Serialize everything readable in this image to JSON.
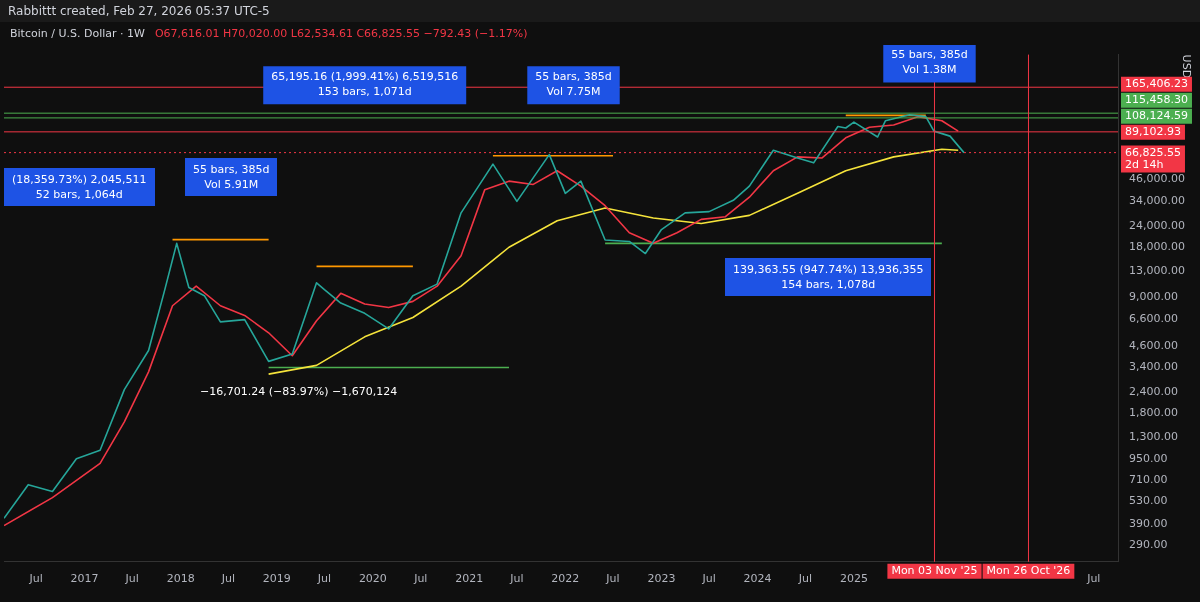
{
  "chart_data": {
    "type": "line",
    "title": "Bitcoin / U.S. Dollar · 1W",
    "subtitle": "O67,616.01 H70,020.00 L62,534.61 C66,825.55 −792.43 (−1.17%)",
    "ylabel": "USD",
    "log": true,
    "grid": false,
    "legend": false,
    "marker": "none",
    "line_style": "solid",
    "xlim": [
      "2016-03-01",
      "2027-10-01"
    ],
    "xticks": [
      {
        "value": "2016-07-01",
        "label": "Jul"
      },
      {
        "value": "2017-01-01",
        "label": "2017"
      },
      {
        "value": "2017-07-01",
        "label": "Jul"
      },
      {
        "value": "2018-01-01",
        "label": "2018"
      },
      {
        "value": "2018-07-01",
        "label": "Jul"
      },
      {
        "value": "2019-01-01",
        "label": "2019"
      },
      {
        "value": "2019-07-01",
        "label": "Jul"
      },
      {
        "value": "2020-01-01",
        "label": "2020"
      },
      {
        "value": "2020-07-01",
        "label": "Jul"
      },
      {
        "value": "2021-01-01",
        "label": "2021"
      },
      {
        "value": "2021-07-01",
        "label": "Jul"
      },
      {
        "value": "2022-01-01",
        "label": "2022"
      },
      {
        "value": "2022-07-01",
        "label": "Jul"
      },
      {
        "value": "2023-01-01",
        "label": "2023"
      },
      {
        "value": "2023-07-01",
        "label": "Jul"
      },
      {
        "value": "2024-01-01",
        "label": "2024"
      },
      {
        "value": "2024-07-01",
        "label": "Jul"
      },
      {
        "value": "2025-01-01",
        "label": "2025"
      },
      {
        "value": "2027-07-01",
        "label": "Jul"
      }
    ],
    "ylim": [
      230,
      260000
    ],
    "yticks": [
      {
        "value": 290,
        "label": "290.00"
      },
      {
        "value": 390,
        "label": "390.00"
      },
      {
        "value": 530,
        "label": "530.00"
      },
      {
        "value": 710,
        "label": "710.00"
      },
      {
        "value": 950,
        "label": "950.00"
      },
      {
        "value": 1300,
        "label": "1,300.00"
      },
      {
        "value": 1800,
        "label": "1,800.00"
      },
      {
        "value": 2400,
        "label": "2,400.00"
      },
      {
        "value": 3400,
        "label": "3,400.00"
      },
      {
        "value": 4600,
        "label": "4,600.00"
      },
      {
        "value": 6600,
        "label": "6,600.00"
      },
      {
        "value": 9000,
        "label": "9,000.00"
      },
      {
        "value": 13000,
        "label": "13,000.00"
      },
      {
        "value": 18000,
        "label": "18,000.00"
      },
      {
        "value": 24000,
        "label": "24,000.00"
      },
      {
        "value": 34000,
        "label": "34,000.00"
      },
      {
        "value": 46000,
        "label": "46,000.00"
      }
    ],
    "series": [
      {
        "color": "#26a69a",
        "x": [
          "2016-03",
          "2016-06",
          "2016-09",
          "2016-12",
          "2017-03",
          "2017-06",
          "2017-09",
          "2017-11",
          "2017-12-17",
          "2018-02",
          "2018-04",
          "2018-06",
          "2018-09",
          "2018-12",
          "2019-03",
          "2019-06",
          "2019-07",
          "2019-09",
          "2019-12",
          "2020-03",
          "2020-06",
          "2020-09",
          "2020-12",
          "2021-04",
          "2021-07",
          "2021-11",
          "2022-01",
          "2022-03",
          "2022-06",
          "2022-09",
          "2022-11",
          "2023-01",
          "2023-04",
          "2023-07",
          "2023-10",
          "2023-12",
          "2024-03",
          "2024-06",
          "2024-08",
          "2024-11",
          "2024-12",
          "2025-01",
          "2025-04",
          "2025-05",
          "2025-08",
          "2025-10",
          "2025-11",
          "2026-01",
          "2026-02-23"
        ],
        "values": [
          420,
          670,
          610,
          960,
          1080,
          2500,
          4300,
          9900,
          19000,
          10300,
          9200,
          6400,
          6600,
          3700,
          4100,
          11000,
          10000,
          8300,
          7200,
          5800,
          9200,
          10800,
          29000,
          57000,
          34000,
          65000,
          38000,
          45000,
          19900,
          19500,
          16500,
          23000,
          29000,
          29500,
          34500,
          42000,
          69000,
          62000,
          58000,
          96000,
          94000,
          102000,
          83000,
          104000,
          113000,
          110000,
          90000,
          84000,
          66825.55
        ]
      },
      {
        "color": "#f23645",
        "x": [
          "2016-03",
          "2016-09",
          "2017-03",
          "2017-06",
          "2017-09",
          "2017-12",
          "2018-03",
          "2018-06",
          "2018-09",
          "2018-12",
          "2019-03",
          "2019-06",
          "2019-09",
          "2019-12",
          "2020-03",
          "2020-06",
          "2020-09",
          "2020-12",
          "2021-03",
          "2021-06",
          "2021-09",
          "2021-12",
          "2022-03",
          "2022-06",
          "2022-09",
          "2022-12",
          "2023-03",
          "2023-06",
          "2023-09",
          "2023-12",
          "2024-03",
          "2024-06",
          "2024-09",
          "2024-12",
          "2025-03",
          "2025-06",
          "2025-09",
          "2025-12",
          "2026-02"
        ],
        "values": [
          380,
          560,
          900,
          1600,
          3200,
          8000,
          10500,
          8000,
          7000,
          5500,
          4000,
          6500,
          9500,
          8200,
          7800,
          8500,
          10500,
          16000,
          40000,
          45000,
          43000,
          52000,
          42000,
          32000,
          22000,
          19000,
          22000,
          26500,
          27500,
          36000,
          52000,
          63000,
          62000,
          82000,
          95000,
          98000,
          110000,
          104000,
          90000
        ]
      },
      {
        "color": "#f5e33b",
        "x": [
          "2018-12",
          "2019-06",
          "2019-12",
          "2020-06",
          "2020-12",
          "2021-06",
          "2021-12",
          "2022-06",
          "2022-12",
          "2023-06",
          "2023-12",
          "2024-06",
          "2024-12",
          "2025-06",
          "2025-12",
          "2026-02"
        ],
        "values": [
          3100,
          3500,
          5200,
          6800,
          10500,
          18000,
          26000,
          31000,
          27000,
          25000,
          28000,
          38000,
          52000,
          63000,
          70000,
          69000
        ]
      },
      {
        "color": "#ff9800",
        "x": [
          "2017-12",
          "2018-12"
        ],
        "values": [
          20000,
          20000
        ]
      },
      {
        "color": "#ff9800",
        "x": [
          "2019-06",
          "2020-06"
        ],
        "values": [
          13800,
          13800
        ]
      },
      {
        "color": "#ff9800",
        "x": [
          "2021-04",
          "2022-07"
        ],
        "values": [
          64000,
          64000
        ]
      },
      {
        "color": "#ff9800",
        "x": [
          "2024-12",
          "2025-10"
        ],
        "values": [
          112000,
          112000
        ]
      },
      {
        "color": "#4caf50",
        "x": [
          "2018-12",
          "2021-06"
        ],
        "values": [
          3400,
          3400
        ]
      },
      {
        "color": "#4caf50",
        "x": [
          "2022-06",
          "2025-12"
        ],
        "values": [
          19000,
          19000
        ]
      }
    ],
    "ref_lines": [
      {
        "axis": "y",
        "value": 165406.23,
        "label": "165,406.23",
        "color": "#f23645",
        "line_style": "solid"
      },
      {
        "axis": "y",
        "value": 115458.3,
        "label": "115,458.30",
        "color": "#4caf50",
        "line_style": "solid"
      },
      {
        "axis": "y",
        "value": 108124.59,
        "label": "108,124.59",
        "color": "#4caf50",
        "line_style": "solid"
      },
      {
        "axis": "y",
        "value": 89102.93,
        "label": "89,102.93",
        "color": "#f23645",
        "line_style": "solid"
      },
      {
        "axis": "y",
        "value": 66825.55,
        "label": "66,825.55\n2d 14h",
        "color": "#f23645",
        "line_style": "dotted"
      },
      {
        "axis": "x",
        "value": "2025-11-03",
        "label": "Mon 03 Nov '25",
        "color": "#f23645",
        "line_style": "solid"
      },
      {
        "axis": "x",
        "value": "2026-10-26",
        "label": "Mon 26 Oct '26",
        "color": "#f23645",
        "line_style": "solid"
      }
    ],
    "annotations": [
      "Rabbittt created, Feb 27, 2026 05:37 UTC-5",
      "(18,359.73%) 2,045,511\n52 bars, 1,064d",
      "55 bars, 385d\nVol 5.91M",
      {
        "text": "65,195.16 (1,999.41%) 6,519,516\n153 bars, 1,071d",
        "x": "2019-12-01",
        "y": 170000
      },
      {
        "text": "55 bars, 385d\nVol 7.75M",
        "x": "2022-02-01",
        "y": 170000
      },
      {
        "text": "55 bars, 385d\nVol 1.38M",
        "x": "2025-10-15",
        "y": 230000
      },
      "139,363.55 (947.74%) 13,936,355\n154 bars, 1,078d",
      "−16,701.24 (−83.97%) −1,670,124"
    ]
  }
}
